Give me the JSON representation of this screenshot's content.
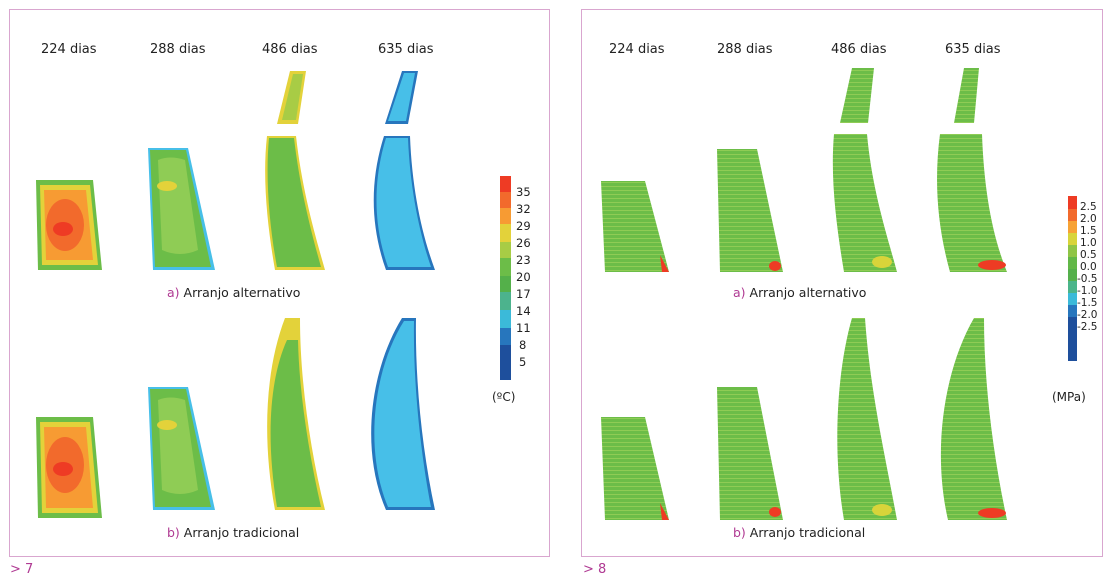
{
  "figure7": {
    "number_label": "> 7",
    "days": [
      "224 dias",
      "288 dias",
      "486 dias",
      "635 dias"
    ],
    "caption_a_letter": "a)",
    "caption_a_text": " Arranjo alternativo",
    "caption_b_letter": "b)",
    "caption_b_text": " Arranjo tradicional",
    "scale_values": [
      "35",
      "32",
      "29",
      "26",
      "23",
      "20",
      "17",
      "14",
      "11",
      "8",
      "5"
    ],
    "scale_unit": "(ºC)",
    "scale_colors": [
      "#ee3b24",
      "#f26a2c",
      "#f79b33",
      "#e3d23a",
      "#a8cc45",
      "#6cbd48",
      "#54b04a",
      "#4cb38d",
      "#3bbad9",
      "#2776bd",
      "#1e4f9c"
    ]
  },
  "figure8": {
    "number_label": "> 8",
    "days": [
      "224 dias",
      "288 dias",
      "486 dias",
      "635 dias"
    ],
    "caption_a_letter": "a)",
    "caption_a_text": " Arranjo alternativo",
    "caption_b_letter": "b)",
    "caption_b_text": " Arranjo tradicional",
    "scale_values": [
      "2.5",
      "2.0",
      "1.5",
      "1.0",
      "0.5",
      "0.0",
      "-0.5",
      "-1.0",
      "-1.5",
      "-2.0",
      "-2.5"
    ],
    "scale_unit": "(MPa)",
    "scale_colors": [
      "#ee3b24",
      "#f26a2c",
      "#f7a235",
      "#d8d43a",
      "#8fc546",
      "#62b848",
      "#55b04c",
      "#4bb58a",
      "#3bbad9",
      "#2776bd",
      "#1e4f9c"
    ]
  },
  "colors": {
    "frame": "#d9a6cf",
    "accent": "#b03a93",
    "green": "#6cbd48",
    "cyan": "#47bfe8",
    "yellow": "#e3d23a",
    "orange": "#f79b33",
    "red": "#ee3b24"
  }
}
